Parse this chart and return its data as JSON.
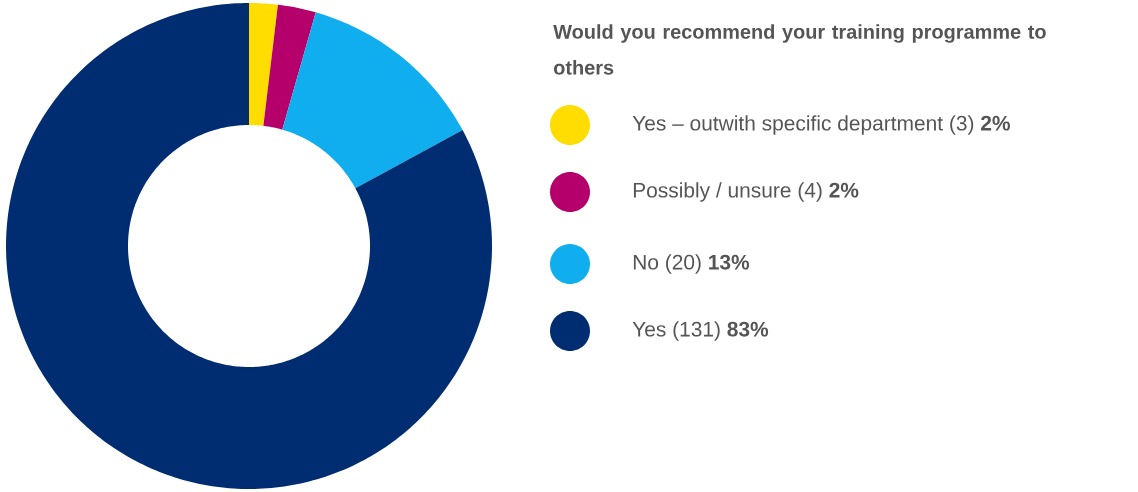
{
  "chart_data": {
    "type": "donut",
    "legend_title": "Would you recommend your training programme to others",
    "categories": [
      "Yes – outwith specific department",
      "Possibly / unsure",
      "No",
      "Yes"
    ],
    "values": [
      3,
      4,
      20,
      131
    ],
    "value_labels": [
      "(3) **2%**",
      "(4) **2%**",
      "(20) **13%**",
      "(131) **83%**"
    ],
    "colors": [
      "#ffdd00",
      "#b5006b",
      "#10aeef",
      "#002d72"
    ],
    "legend": "right"
  }
}
